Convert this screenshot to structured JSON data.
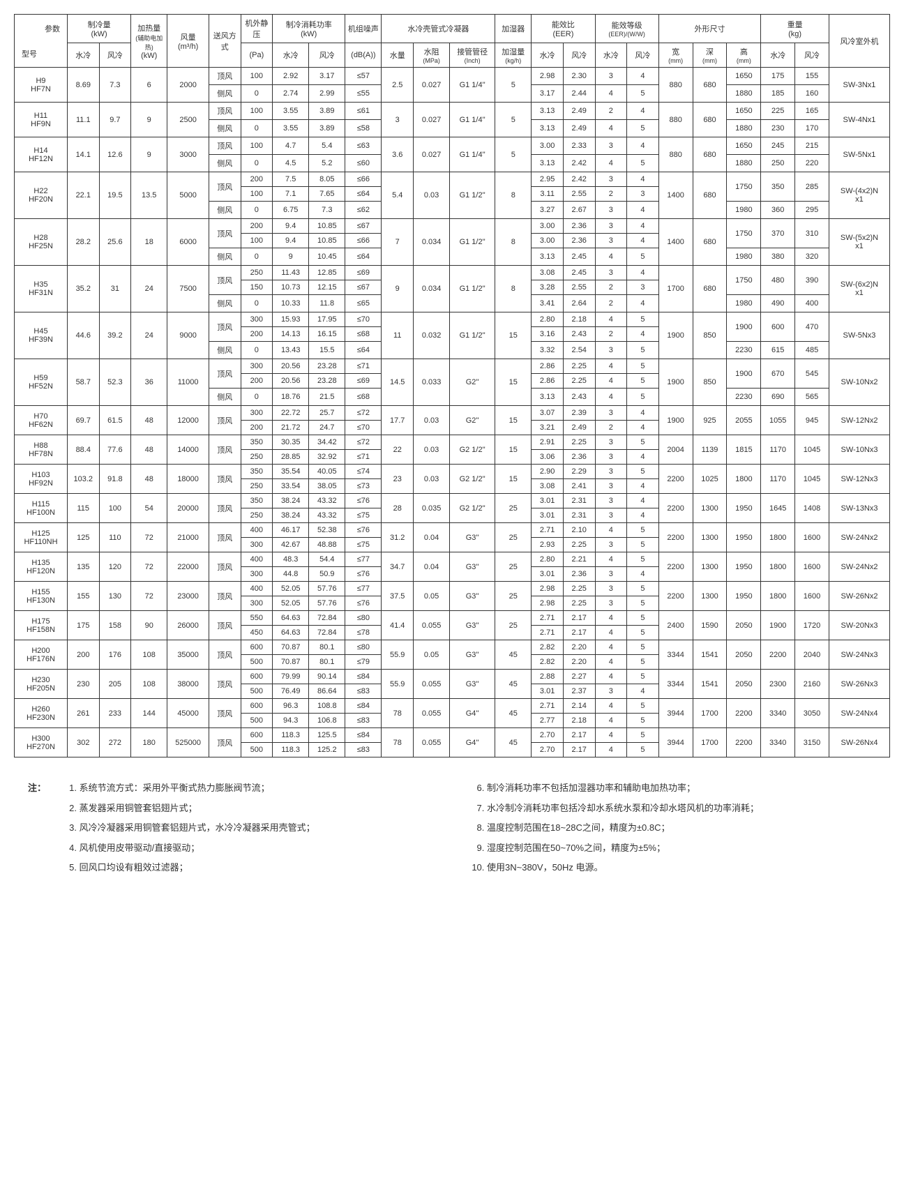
{
  "header": {
    "param": "参数",
    "model": "型号",
    "cooling_cap": "制冷量",
    "heating_cap": "加热量",
    "heating_sub": "(辅助电加热)",
    "kw": "(kW)",
    "airflow": "风量",
    "airflow_unit": "(m³/h)",
    "air_dir": "送风方式",
    "ext_static": "机外静压",
    "pa": "(Pa)",
    "power_consum": "制冷消耗功率",
    "noise": "机组噪声",
    "dba": "(dB(A))",
    "water_cond": "水冷壳管式冷凝器",
    "humidifier": "加湿器",
    "eer": "能效比",
    "eer_sub": "(EER)",
    "eer_grade": "能效等级",
    "eer_grade_sub": "(EER)/(W/W)",
    "dims": "外形尺寸",
    "weight": "重量",
    "kg": "(kg)",
    "outdoor": "风冷室外机",
    "water": "水冷",
    "air": "风冷",
    "water_flow": "水量",
    "water_res": "水阻",
    "mpa": "(MPa)",
    "pipe": "接管管径",
    "inch": "(Inch)",
    "humid_rate": "加湿量",
    "kgh": "(kg/h)",
    "width": "宽",
    "depth": "深",
    "height": "高",
    "mm": "(mm)",
    "top_air": "顶风",
    "side_air": "侧风"
  },
  "rows": [
    {
      "model": "H9\nHF7N",
      "cc_w": "8.69",
      "cc_a": "7.3",
      "heat": "6",
      "af": "2000",
      "sub": [
        {
          "dir": "顶风",
          "pa": "100",
          "pw": "2.92",
          "pa2": "3.17",
          "db": "≤57",
          "eer_w": "2.98",
          "eer_a": "2.30",
          "eg_w": "3",
          "eg_a": "4",
          "h": "1650",
          "ww": "175",
          "wa": "155"
        },
        {
          "dir": "侧风",
          "pa": "0",
          "pw": "2.74",
          "pa2": "2.99",
          "db": "≤55",
          "eer_w": "3.17",
          "eer_a": "2.44",
          "eg_w": "4",
          "eg_a": "5",
          "h": "1880",
          "ww": "185",
          "wa": "160"
        }
      ],
      "wf": "2.5",
      "wr": "0.027",
      "pipe": "G1 1/4''",
      "hum": "5",
      "w": "880",
      "d": "680",
      "out": "SW-3Nx1"
    },
    {
      "model": "H11\nHF9N",
      "cc_w": "11.1",
      "cc_a": "9.7",
      "heat": "9",
      "af": "2500",
      "sub": [
        {
          "dir": "顶风",
          "pa": "100",
          "pw": "3.55",
          "pa2": "3.89",
          "db": "≤61",
          "eer_w": "3.13",
          "eer_a": "2.49",
          "eg_w": "2",
          "eg_a": "4",
          "h": "1650",
          "ww": "225",
          "wa": "165"
        },
        {
          "dir": "侧风",
          "pa": "0",
          "pw": "3.55",
          "pa2": "3.89",
          "db": "≤58",
          "eer_w": "3.13",
          "eer_a": "2.49",
          "eg_w": "4",
          "eg_a": "5",
          "h": "1880",
          "ww": "230",
          "wa": "170"
        }
      ],
      "wf": "3",
      "wr": "0.027",
      "pipe": "G1 1/4''",
      "hum": "5",
      "w": "880",
      "d": "680",
      "out": "SW-4Nx1"
    },
    {
      "model": "H14\nHF12N",
      "cc_w": "14.1",
      "cc_a": "12.6",
      "heat": "9",
      "af": "3000",
      "sub": [
        {
          "dir": "顶风",
          "pa": "100",
          "pw": "4.7",
          "pa2": "5.4",
          "db": "≤63",
          "eer_w": "3.00",
          "eer_a": "2.33",
          "eg_w": "3",
          "eg_a": "4",
          "h": "1650",
          "ww": "245",
          "wa": "215"
        },
        {
          "dir": "侧风",
          "pa": "0",
          "pw": "4.5",
          "pa2": "5.2",
          "db": "≤60",
          "eer_w": "3.13",
          "eer_a": "2.42",
          "eg_w": "4",
          "eg_a": "5",
          "h": "1880",
          "ww": "250",
          "wa": "220"
        }
      ],
      "wf": "3.6",
      "wr": "0.027",
      "pipe": "G1 1/4''",
      "hum": "5",
      "w": "880",
      "d": "680",
      "out": "SW-5Nx1"
    },
    {
      "model": "H22\nHF20N",
      "cc_w": "22.1",
      "cc_a": "19.5",
      "heat": "13.5",
      "af": "5000",
      "sub": [
        {
          "dir": "顶风",
          "pa": "200",
          "pw": "7.5",
          "pa2": "8.05",
          "db": "≤66",
          "eer_w": "2.95",
          "eer_a": "2.42",
          "eg_w": "3",
          "eg_a": "4",
          "h": "1750",
          "ww": "350",
          "wa": "285",
          "spanH": 2,
          "spanW": 2
        },
        {
          "dir": "",
          "pa": "100",
          "pw": "7.1",
          "pa2": "7.65",
          "db": "≤64",
          "eer_w": "3.11",
          "eer_a": "2.55",
          "eg_w": "2",
          "eg_a": "3"
        },
        {
          "dir": "侧风",
          "pa": "0",
          "pw": "6.75",
          "pa2": "7.3",
          "db": "≤62",
          "eer_w": "3.27",
          "eer_a": "2.67",
          "eg_w": "3",
          "eg_a": "4",
          "h": "1980",
          "ww": "360",
          "wa": "295"
        }
      ],
      "wf": "5.4",
      "wr": "0.03",
      "pipe": "G1 1/2''",
      "hum": "8",
      "w": "1400",
      "d": "680",
      "out": "SW-(4x2)N\nx1"
    },
    {
      "model": "H28\nHF25N",
      "cc_w": "28.2",
      "cc_a": "25.6",
      "heat": "18",
      "af": "6000",
      "sub": [
        {
          "dir": "顶风",
          "pa": "200",
          "pw": "9.4",
          "pa2": "10.85",
          "db": "≤67",
          "eer_w": "3.00",
          "eer_a": "2.36",
          "eg_w": "3",
          "eg_a": "4",
          "h": "1750",
          "ww": "370",
          "wa": "310",
          "spanH": 2,
          "spanW": 2
        },
        {
          "dir": "",
          "pa": "100",
          "pw": "9.4",
          "pa2": "10.85",
          "db": "≤66",
          "eer_w": "3.00",
          "eer_a": "2.36",
          "eg_w": "3",
          "eg_a": "4"
        },
        {
          "dir": "侧风",
          "pa": "0",
          "pw": "9",
          "pa2": "10.45",
          "db": "≤64",
          "eer_w": "3.13",
          "eer_a": "2.45",
          "eg_w": "4",
          "eg_a": "5",
          "h": "1980",
          "ww": "380",
          "wa": "320"
        }
      ],
      "wf": "7",
      "wr": "0.034",
      "pipe": "G1 1/2''",
      "hum": "8",
      "w": "1400",
      "d": "680",
      "out": "SW-(5x2)N\nx1"
    },
    {
      "model": "H35\nHF31N",
      "cc_w": "35.2",
      "cc_a": "31",
      "heat": "24",
      "af": "7500",
      "sub": [
        {
          "dir": "顶风",
          "pa": "250",
          "pw": "11.43",
          "pa2": "12.85",
          "db": "≤69",
          "eer_w": "3.08",
          "eer_a": "2.45",
          "eg_w": "3",
          "eg_a": "4",
          "h": "1750",
          "ww": "480",
          "wa": "390",
          "spanH": 2,
          "spanW": 2
        },
        {
          "dir": "",
          "pa": "150",
          "pw": "10.73",
          "pa2": "12.15",
          "db": "≤67",
          "eer_w": "3.28",
          "eer_a": "2.55",
          "eg_w": "2",
          "eg_a": "3"
        },
        {
          "dir": "侧风",
          "pa": "0",
          "pw": "10.33",
          "pa2": "11.8",
          "db": "≤65",
          "eer_w": "3.41",
          "eer_a": "2.64",
          "eg_w": "2",
          "eg_a": "4",
          "h": "1980",
          "ww": "490",
          "wa": "400"
        }
      ],
      "wf": "9",
      "wr": "0.034",
      "pipe": "G1 1/2''",
      "hum": "8",
      "w": "1700",
      "d": "680",
      "out": "SW-(6x2)N\nx1"
    },
    {
      "model": "H45\nHF39N",
      "cc_w": "44.6",
      "cc_a": "39.2",
      "heat": "24",
      "af": "9000",
      "sub": [
        {
          "dir": "顶风",
          "pa": "300",
          "pw": "15.93",
          "pa2": "17.95",
          "db": "≤70",
          "eer_w": "2.80",
          "eer_a": "2.18",
          "eg_w": "4",
          "eg_a": "5",
          "h": "1900",
          "ww": "600",
          "wa": "470",
          "spanH": 2,
          "spanW": 2
        },
        {
          "dir": "",
          "pa": "200",
          "pw": "14.13",
          "pa2": "16.15",
          "db": "≤68",
          "eer_w": "3.16",
          "eer_a": "2.43",
          "eg_w": "2",
          "eg_a": "4"
        },
        {
          "dir": "侧风",
          "pa": "0",
          "pw": "13.43",
          "pa2": "15.5",
          "db": "≤64",
          "eer_w": "3.32",
          "eer_a": "2.54",
          "eg_w": "3",
          "eg_a": "5",
          "h": "2230",
          "ww": "615",
          "wa": "485"
        }
      ],
      "wf": "11",
      "wr": "0.032",
      "pipe": "G1 1/2''",
      "hum": "15",
      "w": "1900",
      "d": "850",
      "out": "SW-5Nx3"
    },
    {
      "model": "H59\nHF52N",
      "cc_w": "58.7",
      "cc_a": "52.3",
      "heat": "36",
      "af": "11000",
      "sub": [
        {
          "dir": "顶风",
          "pa": "300",
          "pw": "20.56",
          "pa2": "23.28",
          "db": "≤71",
          "eer_w": "2.86",
          "eer_a": "2.25",
          "eg_w": "4",
          "eg_a": "5",
          "h": "1900",
          "ww": "670",
          "wa": "545",
          "spanH": 2,
          "spanW": 2
        },
        {
          "dir": "",
          "pa": "200",
          "pw": "20.56",
          "pa2": "23.28",
          "db": "≤69",
          "eer_w": "2.86",
          "eer_a": "2.25",
          "eg_w": "4",
          "eg_a": "5"
        },
        {
          "dir": "侧风",
          "pa": "0",
          "pw": "18.76",
          "pa2": "21.5",
          "db": "≤68",
          "eer_w": "3.13",
          "eer_a": "2.43",
          "eg_w": "4",
          "eg_a": "5",
          "h": "2230",
          "ww": "690",
          "wa": "565"
        }
      ],
      "wf": "14.5",
      "wr": "0.033",
      "pipe": "G2''",
      "hum": "15",
      "w": "1900",
      "d": "850",
      "out": "SW-10Nx2"
    },
    {
      "model": "H70\nHF62N",
      "cc_w": "69.7",
      "cc_a": "61.5",
      "heat": "48",
      "af": "12000",
      "dir_span": "顶风",
      "sub": [
        {
          "pa": "300",
          "pw": "22.72",
          "pa2": "25.7",
          "db": "≤72",
          "eer_w": "3.07",
          "eer_a": "2.39",
          "eg_w": "3",
          "eg_a": "4"
        },
        {
          "pa": "200",
          "pw": "21.72",
          "pa2": "24.7",
          "db": "≤70",
          "eer_w": "3.21",
          "eer_a": "2.49",
          "eg_w": "2",
          "eg_a": "4"
        }
      ],
      "wf": "17.7",
      "wr": "0.03",
      "pipe": "G2''",
      "hum": "15",
      "w": "1900",
      "d": "925",
      "h": "2055",
      "ww": "1055",
      "wa": "945",
      "out": "SW-12Nx2"
    },
    {
      "model": "H88\nHF78N",
      "cc_w": "88.4",
      "cc_a": "77.6",
      "heat": "48",
      "af": "14000",
      "dir_span": "顶风",
      "sub": [
        {
          "pa": "350",
          "pw": "30.35",
          "pa2": "34.42",
          "db": "≤72",
          "eer_w": "2.91",
          "eer_a": "2.25",
          "eg_w": "3",
          "eg_a": "5"
        },
        {
          "pa": "250",
          "pw": "28.85",
          "pa2": "32.92",
          "db": "≤71",
          "eer_w": "3.06",
          "eer_a": "2.36",
          "eg_w": "3",
          "eg_a": "4"
        }
      ],
      "wf": "22",
      "wr": "0.03",
      "pipe": "G2 1/2''",
      "hum": "15",
      "w": "2004",
      "d": "1139",
      "h": "1815",
      "ww": "1170",
      "wa": "1045",
      "out": "SW-10Nx3"
    },
    {
      "model": "H103\nHF92N",
      "cc_w": "103.2",
      "cc_a": "91.8",
      "heat": "48",
      "af": "18000",
      "dir_span": "顶风",
      "sub": [
        {
          "pa": "350",
          "pw": "35.54",
          "pa2": "40.05",
          "db": "≤74",
          "eer_w": "2.90",
          "eer_a": "2.29",
          "eg_w": "3",
          "eg_a": "5"
        },
        {
          "pa": "250",
          "pw": "33.54",
          "pa2": "38.05",
          "db": "≤73",
          "eer_w": "3.08",
          "eer_a": "2.41",
          "eg_w": "3",
          "eg_a": "4"
        }
      ],
      "wf": "23",
      "wr": "0.03",
      "pipe": "G2 1/2''",
      "hum": "15",
      "w": "2200",
      "d": "1025",
      "h": "1800",
      "ww": "1170",
      "wa": "1045",
      "out": "SW-12Nx3"
    },
    {
      "model": "H115\nHF100N",
      "cc_w": "115",
      "cc_a": "100",
      "heat": "54",
      "af": "20000",
      "dir_span": "顶风",
      "sub": [
        {
          "pa": "350",
          "pw": "38.24",
          "pa2": "43.32",
          "db": "≤76",
          "eer_w": "3.01",
          "eer_a": "2.31",
          "eg_w": "3",
          "eg_a": "4"
        },
        {
          "pa": "250",
          "pw": "38.24",
          "pa2": "43.32",
          "db": "≤75",
          "eer_w": "3.01",
          "eer_a": "2.31",
          "eg_w": "3",
          "eg_a": "4"
        }
      ],
      "wf": "28",
      "wr": "0.035",
      "pipe": "G2 1/2''",
      "hum": "25",
      "w": "2200",
      "d": "1300",
      "h": "1950",
      "ww": "1645",
      "wa": "1408",
      "out": "SW-13Nx3"
    },
    {
      "model": "H125\nHF110NH",
      "cc_w": "125",
      "cc_a": "110",
      "heat": "72",
      "af": "21000",
      "dir_span": "顶风",
      "sub": [
        {
          "pa": "400",
          "pw": "46.17",
          "pa2": "52.38",
          "db": "≤76",
          "eer_w": "2.71",
          "eer_a": "2.10",
          "eg_w": "4",
          "eg_a": "5"
        },
        {
          "pa": "300",
          "pw": "42.67",
          "pa2": "48.88",
          "db": "≤75",
          "eer_w": "2.93",
          "eer_a": "2.25",
          "eg_w": "3",
          "eg_a": "5"
        }
      ],
      "wf": "31.2",
      "wr": "0.04",
      "pipe": "G3''",
      "hum": "25",
      "w": "2200",
      "d": "1300",
      "h": "1950",
      "ww": "1800",
      "wa": "1600",
      "out": "SW-24Nx2"
    },
    {
      "model": "H135\nHF120N",
      "cc_w": "135",
      "cc_a": "120",
      "heat": "72",
      "af": "22000",
      "dir_span": "顶风",
      "sub": [
        {
          "pa": "400",
          "pw": "48.3",
          "pa2": "54.4",
          "db": "≤77",
          "eer_w": "2.80",
          "eer_a": "2.21",
          "eg_w": "4",
          "eg_a": "5"
        },
        {
          "pa": "300",
          "pw": "44.8",
          "pa2": "50.9",
          "db": "≤76",
          "eer_w": "3.01",
          "eer_a": "2.36",
          "eg_w": "3",
          "eg_a": "4"
        }
      ],
      "wf": "34.7",
      "wr": "0.04",
      "pipe": "G3''",
      "hum": "25",
      "w": "2200",
      "d": "1300",
      "h": "1950",
      "ww": "1800",
      "wa": "1600",
      "out": "SW-24Nx2"
    },
    {
      "model": "H155\nHF130N",
      "cc_w": "155",
      "cc_a": "130",
      "heat": "72",
      "af": "23000",
      "dir_span": "顶风",
      "sub": [
        {
          "pa": "400",
          "pw": "52.05",
          "pa2": "57.76",
          "db": "≤77",
          "eer_w": "2.98",
          "eer_a": "2.25",
          "eg_w": "3",
          "eg_a": "5"
        },
        {
          "pa": "300",
          "pw": "52.05",
          "pa2": "57.76",
          "db": "≤76",
          "eer_w": "2.98",
          "eer_a": "2.25",
          "eg_w": "3",
          "eg_a": "5"
        }
      ],
      "wf": "37.5",
      "wr": "0.05",
      "pipe": "G3''",
      "hum": "25",
      "w": "2200",
      "d": "1300",
      "h": "1950",
      "ww": "1800",
      "wa": "1600",
      "out": "SW-26Nx2"
    },
    {
      "model": "H175\nHF158N",
      "cc_w": "175",
      "cc_a": "158",
      "heat": "90",
      "af": "26000",
      "dir_span": "顶风",
      "sub": [
        {
          "pa": "550",
          "pw": "64.63",
          "pa2": "72.84",
          "db": "≤80",
          "eer_w": "2.71",
          "eer_a": "2.17",
          "eg_w": "4",
          "eg_a": "5"
        },
        {
          "pa": "450",
          "pw": "64.63",
          "pa2": "72.84",
          "db": "≤78",
          "eer_w": "2.71",
          "eer_a": "2.17",
          "eg_w": "4",
          "eg_a": "5"
        }
      ],
      "wf": "41.4",
      "wr": "0.055",
      "pipe": "G3''",
      "hum": "25",
      "w": "2400",
      "d": "1590",
      "h": "2050",
      "ww": "1900",
      "wa": "1720",
      "out": "SW-20Nx3"
    },
    {
      "model": "H200\nHF176N",
      "cc_w": "200",
      "cc_a": "176",
      "heat": "108",
      "af": "35000",
      "dir_span": "顶风",
      "sub": [
        {
          "pa": "600",
          "pw": "70.87",
          "pa2": "80.1",
          "db": "≤80",
          "eer_w": "2.82",
          "eer_a": "2.20",
          "eg_w": "4",
          "eg_a": "5"
        },
        {
          "pa": "500",
          "pw": "70.87",
          "pa2": "80.1",
          "db": "≤79",
          "eer_w": "2.82",
          "eer_a": "2.20",
          "eg_w": "4",
          "eg_a": "5"
        }
      ],
      "wf": "55.9",
      "wr": "0.05",
      "pipe": "G3''",
      "hum": "45",
      "w": "3344",
      "d": "1541",
      "h": "2050",
      "ww": "2200",
      "wa": "2040",
      "out": "SW-24Nx3"
    },
    {
      "model": "H230\nHF205N",
      "cc_w": "230",
      "cc_a": "205",
      "heat": "108",
      "af": "38000",
      "dir_span": "顶风",
      "sub": [
        {
          "pa": "600",
          "pw": "79.99",
          "pa2": "90.14",
          "db": "≤84",
          "eer_w": "2.88",
          "eer_a": "2.27",
          "eg_w": "4",
          "eg_a": "5"
        },
        {
          "pa": "500",
          "pw": "76.49",
          "pa2": "86.64",
          "db": "≤83",
          "eer_w": "3.01",
          "eer_a": "2.37",
          "eg_w": "3",
          "eg_a": "4"
        }
      ],
      "wf": "55.9",
      "wr": "0.055",
      "pipe": "G3''",
      "hum": "45",
      "w": "3344",
      "d": "1541",
      "h": "2050",
      "ww": "2300",
      "wa": "2160",
      "out": "SW-26Nx3"
    },
    {
      "model": "H260\nHF230N",
      "cc_w": "261",
      "cc_a": "233",
      "heat": "144",
      "af": "45000",
      "dir_span": "顶风",
      "sub": [
        {
          "pa": "600",
          "pw": "96.3",
          "pa2": "108.8",
          "db": "≤84",
          "eer_w": "2.71",
          "eer_a": "2.14",
          "eg_w": "4",
          "eg_a": "5"
        },
        {
          "pa": "500",
          "pw": "94.3",
          "pa2": "106.8",
          "db": "≤83",
          "eer_w": "2.77",
          "eer_a": "2.18",
          "eg_w": "4",
          "eg_a": "5"
        }
      ],
      "wf": "78",
      "wr": "0.055",
      "pipe": "G4''",
      "hum": "45",
      "w": "3944",
      "d": "1700",
      "h": "2200",
      "ww": "3340",
      "wa": "3050",
      "out": "SW-24Nx4"
    },
    {
      "model": "H300\nHF270N",
      "cc_w": "302",
      "cc_a": "272",
      "heat": "180",
      "af": "525000",
      "dir_span": "顶风",
      "sub": [
        {
          "pa": "600",
          "pw": "118.3",
          "pa2": "125.5",
          "db": "≤84",
          "eer_w": "2.70",
          "eer_a": "2.17",
          "eg_w": "4",
          "eg_a": "5"
        },
        {
          "pa": "500",
          "pw": "118.3",
          "pa2": "125.2",
          "db": "≤83",
          "eer_w": "2.70",
          "eer_a": "2.17",
          "eg_w": "4",
          "eg_a": "5"
        }
      ],
      "wf": "78",
      "wr": "0.055",
      "pipe": "G4''",
      "hum": "45",
      "w": "3944",
      "d": "1700",
      "h": "2200",
      "ww": "3340",
      "wa": "3150",
      "out": "SW-26Nx4"
    }
  ],
  "notes_label": "注：",
  "notes_left": [
    "系统节流方式：采用外平衡式热力膨胀阀节流；",
    "蒸发器采用铜管套铝翅片式；",
    "风冷冷凝器采用铜管套铝翅片式，水冷冷凝器采用壳管式；",
    "风机使用皮带驱动/直接驱动；",
    "回风口均设有粗效过滤器；"
  ],
  "notes_right": [
    "制冷消耗功率不包括加湿器功率和辅助电加热功率；",
    "水冷制冷消耗功率包括冷却水系统水泵和冷却水塔风机的功率消耗；",
    "温度控制范围在18~28C之间，精度为±0.8C；",
    "湿度控制范围在50~70%之间，精度为±5%；",
    "使用3N~380V，50Hz 电源。"
  ]
}
